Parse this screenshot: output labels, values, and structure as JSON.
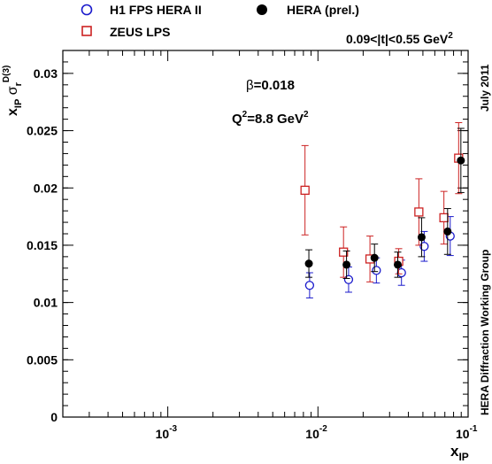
{
  "legend": {
    "h1": "H1 FPS HERA II",
    "hera": "HERA (prel.)",
    "zeus": "ZEUS LPS"
  },
  "t_range": {
    "prefix": "0.09<|t|<0.55 GeV",
    "exp": "2"
  },
  "side_label_top": "July 2011",
  "side_label_bottom": "HERA Diffraction Working Group",
  "beta_label": {
    "sym": "β",
    "value": "=0.018"
  },
  "q2_label": {
    "q": "Q",
    "sup": "2",
    "value": "=8.8 GeV",
    "sup2": "2"
  },
  "ylabel": {
    "x": "x",
    "xsub": "IP",
    "sigma": " σ",
    "rsub": "r",
    "sup": "D(3)"
  },
  "xlabel": {
    "x": "x",
    "sub": "IP"
  },
  "colors": {
    "h1": "#1a1acc",
    "zeus": "#cc2222",
    "hera": "#000000"
  },
  "chart_data": {
    "type": "scatter",
    "x_scale": "log",
    "xlim": [
      0.0002,
      0.1
    ],
    "ylim": [
      0,
      0.032
    ],
    "x_ticks": [
      {
        "value": 0.001,
        "base": "10",
        "exp": "-3"
      },
      {
        "value": 0.01,
        "base": "10",
        "exp": "-2"
      },
      {
        "value": 0.1,
        "base": "10",
        "exp": "-1"
      }
    ],
    "y_ticks": [
      "0",
      "0.005",
      "0.01",
      "0.015",
      "0.02",
      "0.025",
      "0.03"
    ],
    "series": [
      {
        "name": "H1 FPS HERA II",
        "marker": "open-circle",
        "points": [
          {
            "x": 0.0088,
            "y": 0.0115,
            "err": 0.0011
          },
          {
            "x": 0.016,
            "y": 0.012,
            "err": 0.0011
          },
          {
            "x": 0.0245,
            "y": 0.0128,
            "err": 0.0011
          },
          {
            "x": 0.036,
            "y": 0.0126,
            "err": 0.0011
          },
          {
            "x": 0.051,
            "y": 0.0149,
            "err": 0.0013
          },
          {
            "x": 0.076,
            "y": 0.0158,
            "err": 0.0017
          }
        ]
      },
      {
        "name": "ZEUS LPS",
        "marker": "open-square",
        "points": [
          {
            "x": 0.0082,
            "y": 0.0198,
            "err": 0.0039
          },
          {
            "x": 0.0148,
            "y": 0.0144,
            "err": 0.0022
          },
          {
            "x": 0.0222,
            "y": 0.0138,
            "err": 0.002
          },
          {
            "x": 0.0345,
            "y": 0.0136,
            "err": 0.0011
          },
          {
            "x": 0.047,
            "y": 0.0179,
            "err": 0.0029
          },
          {
            "x": 0.069,
            "y": 0.0174,
            "err": 0.0023
          },
          {
            "x": 0.0865,
            "y": 0.0226,
            "err": 0.0031
          }
        ]
      },
      {
        "name": "HERA (prel.)",
        "marker": "filled-circle",
        "points": [
          {
            "x": 0.0087,
            "y": 0.0134,
            "err": 0.0012
          },
          {
            "x": 0.0155,
            "y": 0.0133,
            "err": 0.0012
          },
          {
            "x": 0.0238,
            "y": 0.0139,
            "err": 0.0012
          },
          {
            "x": 0.034,
            "y": 0.0133,
            "err": 0.0011
          },
          {
            "x": 0.049,
            "y": 0.0157,
            "err": 0.0017
          },
          {
            "x": 0.073,
            "y": 0.0162,
            "err": 0.002
          },
          {
            "x": 0.0895,
            "y": 0.0224,
            "err": 0.0028
          }
        ]
      }
    ]
  }
}
